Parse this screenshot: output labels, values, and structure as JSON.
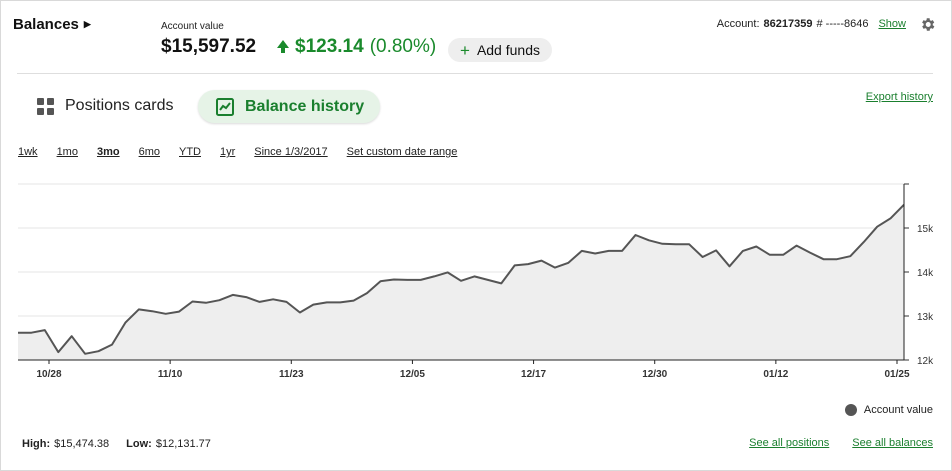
{
  "header": {
    "title": "Balances",
    "account_value_label": "Account value",
    "account_value": "$15,597.52",
    "change_amount": "$123.14",
    "change_percent": "(0.80%)",
    "add_funds_label": "Add funds",
    "account_label": "Account:",
    "account_number": "86217359",
    "account_masked": "# -----8646",
    "show_label": "Show",
    "settings_icon": "gear-icon"
  },
  "tabs": {
    "positions_cards": "Positions cards",
    "balance_history": "Balance history"
  },
  "export_label": "Export history",
  "ranges": [
    {
      "label": "1wk",
      "active": false
    },
    {
      "label": "1mo",
      "active": false
    },
    {
      "label": "3mo",
      "active": true
    },
    {
      "label": "6mo",
      "active": false
    },
    {
      "label": "YTD",
      "active": false
    },
    {
      "label": "1yr",
      "active": false
    },
    {
      "label": "Since 1/3/2017",
      "active": false
    },
    {
      "label": "Set custom date range",
      "active": false
    }
  ],
  "colors": {
    "accent_green": "#1a7f2e",
    "line": "#555555",
    "area_fill": "#eeeeee"
  },
  "chart_data": {
    "type": "area",
    "x_tick_labels": [
      "10/28",
      "11/10",
      "11/23",
      "12/05",
      "12/17",
      "12/30",
      "01/12",
      "01/25"
    ],
    "y_tick_labels": [
      "12k",
      "13k",
      "14k",
      "15k"
    ],
    "y_ticks": [
      12000,
      13000,
      14000,
      15000
    ],
    "ylim": [
      12000,
      16000
    ],
    "grid": true,
    "legend_position": "bottom-right",
    "series": [
      {
        "name": "Account value",
        "values": [
          12620,
          12620,
          12680,
          12180,
          12540,
          12140,
          12200,
          12350,
          12850,
          13150,
          13110,
          13050,
          13100,
          13330,
          13300,
          13360,
          13480,
          13430,
          13320,
          13380,
          13320,
          13080,
          13260,
          13310,
          13310,
          13350,
          13520,
          13790,
          13830,
          13820,
          13820,
          13900,
          13990,
          13800,
          13900,
          13820,
          13740,
          14150,
          14180,
          14260,
          14100,
          14210,
          14480,
          14420,
          14480,
          14480,
          14840,
          14720,
          14640,
          14630,
          14630,
          14340,
          14490,
          14130,
          14480,
          14580,
          14390,
          14390,
          14600,
          14440,
          14290,
          14290,
          14360,
          14680,
          15030,
          15220,
          15530
        ]
      }
    ]
  },
  "legend_label": "Account value",
  "footer": {
    "high_label": "High:",
    "high_value": "$15,474.38",
    "low_label": "Low:",
    "low_value": "$12,131.77",
    "see_positions": "See all positions",
    "see_balances": "See all balances"
  }
}
